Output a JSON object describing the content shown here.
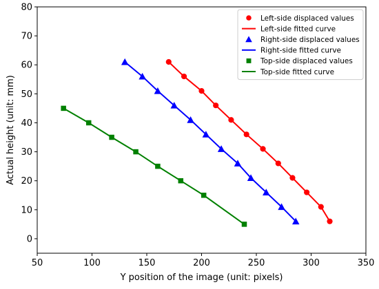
{
  "chart_data": {
    "type": "line",
    "xlabel": "Y position of the image (unit: pixels)",
    "ylabel": "Actual height (unit: mm)",
    "xlim": [
      50,
      350
    ],
    "ylim": [
      -5,
      80
    ],
    "xticks": [
      50,
      100,
      150,
      200,
      250,
      300,
      350
    ],
    "yticks": [
      0,
      10,
      20,
      30,
      40,
      50,
      60,
      70,
      80
    ],
    "grid": false,
    "legend_position": "top-right",
    "series": [
      {
        "name": "Left-side displaced values",
        "kind": "markers",
        "marker": "circle",
        "color": "#ff0000",
        "x": [
          170,
          184,
          200,
          213,
          227,
          241,
          256,
          270,
          283,
          296,
          309,
          317
        ],
        "y": [
          61,
          56,
          51,
          46,
          41,
          36,
          31,
          26,
          21,
          16,
          11,
          6
        ]
      },
      {
        "name": "Left-side fitted curve",
        "kind": "line",
        "color": "#ff0000",
        "x": [
          170,
          184,
          200,
          213,
          227,
          241,
          256,
          270,
          283,
          296,
          309,
          317
        ],
        "y": [
          61,
          56,
          51,
          46,
          41,
          36,
          31,
          26,
          21,
          16,
          11,
          6
        ]
      },
      {
        "name": "Right-side displaced values",
        "kind": "markers",
        "marker": "triangle",
        "color": "#0000ff",
        "x": [
          130,
          146,
          160,
          175,
          190,
          204,
          218,
          233,
          245,
          259,
          273,
          286
        ],
        "y": [
          61,
          56,
          51,
          46,
          41,
          36,
          31,
          26,
          21,
          16,
          11,
          6
        ]
      },
      {
        "name": "Right-side fitted curve",
        "kind": "line",
        "color": "#0000ff",
        "x": [
          130,
          146,
          160,
          175,
          190,
          204,
          218,
          233,
          245,
          259,
          273,
          286
        ],
        "y": [
          61,
          56,
          51,
          46,
          41,
          36,
          31,
          26,
          21,
          16,
          11,
          6
        ]
      },
      {
        "name": "Top-side displaced values",
        "kind": "markers",
        "marker": "square",
        "color": "#008000",
        "x": [
          74,
          97,
          118,
          140,
          160,
          181,
          202,
          239
        ],
        "y": [
          45,
          40,
          35,
          30,
          25,
          20,
          15,
          5
        ]
      },
      {
        "name": "Top-side fitted curve",
        "kind": "line",
        "color": "#008000",
        "x": [
          74,
          97,
          118,
          140,
          160,
          181,
          202,
          239
        ],
        "y": [
          45,
          40,
          35,
          30,
          25,
          20,
          15,
          5
        ]
      }
    ]
  }
}
